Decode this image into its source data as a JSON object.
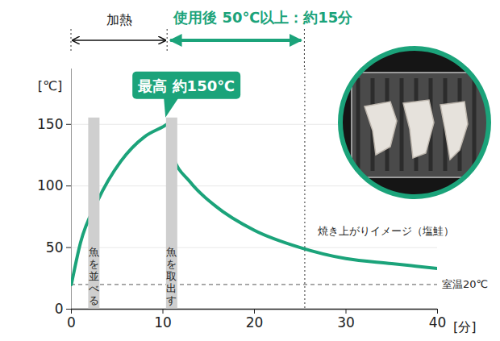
{
  "chart_data": {
    "type": "line",
    "x": [
      0,
      1,
      2.8,
      5.4,
      8,
      10,
      10.5,
      11,
      13,
      15.7,
      20,
      25,
      30,
      35,
      40
    ],
    "values": [
      20,
      54,
      87,
      120,
      140,
      148,
      150,
      126,
      103,
      84,
      64,
      50,
      41,
      37,
      33
    ],
    "color": "#1ba37a",
    "xlim": [
      0,
      40
    ],
    "xticks": [
      0,
      10,
      20,
      30,
      40
    ],
    "ylim": [
      0,
      195
    ],
    "yticks": [
      0,
      50,
      100,
      150
    ],
    "grid": true,
    "x_label": "[分]",
    "y_label": "[℃]",
    "heating": {
      "label": "加熱",
      "x": [
        0,
        10.5
      ]
    },
    "after_use": {
      "label": "使用後 50℃以上：約15分",
      "x": [
        10.5,
        25.5
      ]
    },
    "peak": {
      "label": "最高 約150℃",
      "x": 10.5,
      "y": 150
    },
    "markers": [
      {
        "label": "魚を並べる",
        "x": 2.5
      },
      {
        "label": "魚を取出す",
        "x": 11
      }
    ],
    "room_temp": {
      "label": "室温20℃",
      "y": 20
    },
    "photo_label": "焼き上がりイメージ（塩鮭）"
  }
}
